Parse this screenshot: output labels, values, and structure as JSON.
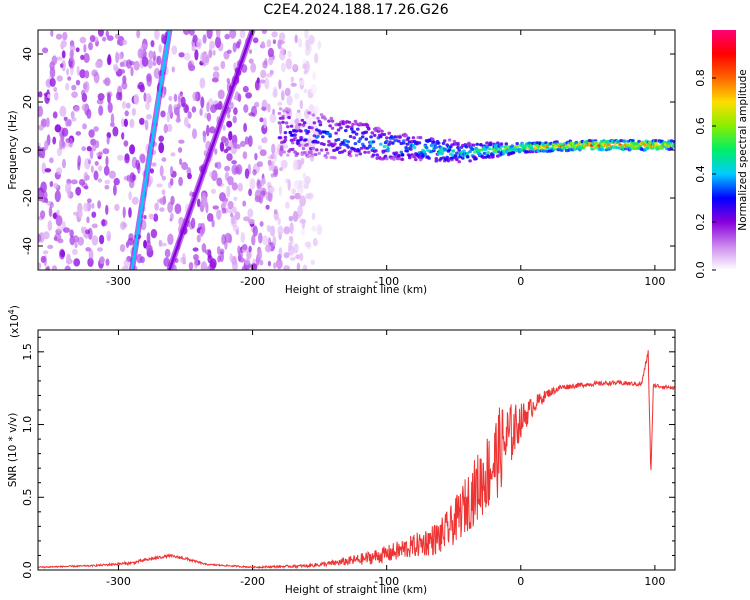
{
  "title": "C2E4.2024.188.17.26.G26",
  "chart_data": [
    {
      "type": "heatmap",
      "xlabel": "Height of straight line (km)",
      "ylabel": "Frequency (Hz)",
      "xlim": [
        -360,
        115
      ],
      "ylim": [
        -50,
        50
      ],
      "xticks": [
        -300,
        -200,
        -100,
        0,
        100
      ],
      "yticks": [
        -40,
        -20,
        0,
        20,
        40
      ],
      "colorbar": {
        "label": "Normalized spectral amplitude",
        "range": [
          0.0,
          1.0
        ],
        "ticks": [
          "0.0",
          "0.2",
          "0.4",
          "0.6",
          "0.8"
        ],
        "colors": [
          "#ffffff",
          "#cc88ee",
          "#8800dd",
          "#0000ff",
          "#00ccff",
          "#00ee66",
          "#88ee00",
          "#ffdd00",
          "#ff6600",
          "#ff0000",
          "#ff0077"
        ]
      },
      "features": [
        {
          "kind": "noise-field",
          "x_range": [
            -360,
            -150
          ],
          "y_range": [
            -50,
            50
          ],
          "amplitude": 0.1
        },
        {
          "kind": "streak",
          "from": [
            -290,
            -50
          ],
          "to": [
            -262,
            50
          ],
          "amplitude": 0.4
        },
        {
          "kind": "streak",
          "from": [
            -262,
            -50
          ],
          "to": [
            -200,
            50
          ],
          "amplitude": 0.2
        },
        {
          "kind": "band",
          "x": [
            -180,
            -150,
            -120,
            -100,
            -80,
            -60,
            -40,
            -20,
            0,
            50,
            100,
            115
          ],
          "center": [
            8,
            6,
            4,
            2,
            1,
            0,
            -1,
            0,
            1,
            2,
            2,
            2
          ],
          "half_width": [
            10,
            9,
            8,
            6,
            5,
            5,
            4,
            3,
            2,
            2,
            2,
            2
          ],
          "amplitude": [
            0.3,
            0.35,
            0.4,
            0.45,
            0.45,
            0.5,
            0.5,
            0.6,
            0.75,
            0.9,
            0.9,
            0.7
          ]
        }
      ]
    },
    {
      "type": "line",
      "xlabel": "Height of straight line (km)",
      "ylabel": "SNR (10 * v/v)",
      "yscale_label": "(x10",
      "yscale_exp": "4",
      "yscale_close": ")",
      "xlim": [
        -360,
        115
      ],
      "ylim": [
        0,
        1.65
      ],
      "xticks": [
        -300,
        -200,
        -100,
        0,
        100
      ],
      "yticks": [
        "0.0",
        "0.5",
        "1.0",
        "1.5"
      ],
      "ytick_values": [
        0.0,
        0.5,
        1.0,
        1.5
      ],
      "series": [
        {
          "color": "#ee3333",
          "x": [
            -360,
            -320,
            -290,
            -275,
            -262,
            -250,
            -235,
            -200,
            -160,
            -140,
            -120,
            -100,
            -80,
            -60,
            -50,
            -40,
            -30,
            -20,
            -15,
            -10,
            0,
            10,
            20,
            30,
            50,
            70,
            90,
            95,
            97,
            99,
            100,
            110,
            115
          ],
          "y": [
            0.02,
            0.03,
            0.05,
            0.08,
            0.1,
            0.08,
            0.04,
            0.02,
            0.03,
            0.05,
            0.08,
            0.12,
            0.18,
            0.25,
            0.35,
            0.5,
            0.65,
            0.8,
            0.9,
            0.95,
            1.05,
            1.15,
            1.22,
            1.26,
            1.28,
            1.29,
            1.28,
            1.5,
            0.65,
            1.3,
            1.27,
            1.26,
            1.25
          ],
          "noise": [
            0.005,
            0.005,
            0.01,
            0.01,
            0.01,
            0.01,
            0.005,
            0.005,
            0.01,
            0.02,
            0.04,
            0.06,
            0.08,
            0.12,
            0.15,
            0.2,
            0.25,
            0.3,
            0.3,
            0.25,
            0.12,
            0.06,
            0.03,
            0.02,
            0.015,
            0.015,
            0.015,
            0.02,
            0.02,
            0.02,
            0.015,
            0.015,
            0.015
          ]
        }
      ]
    }
  ]
}
